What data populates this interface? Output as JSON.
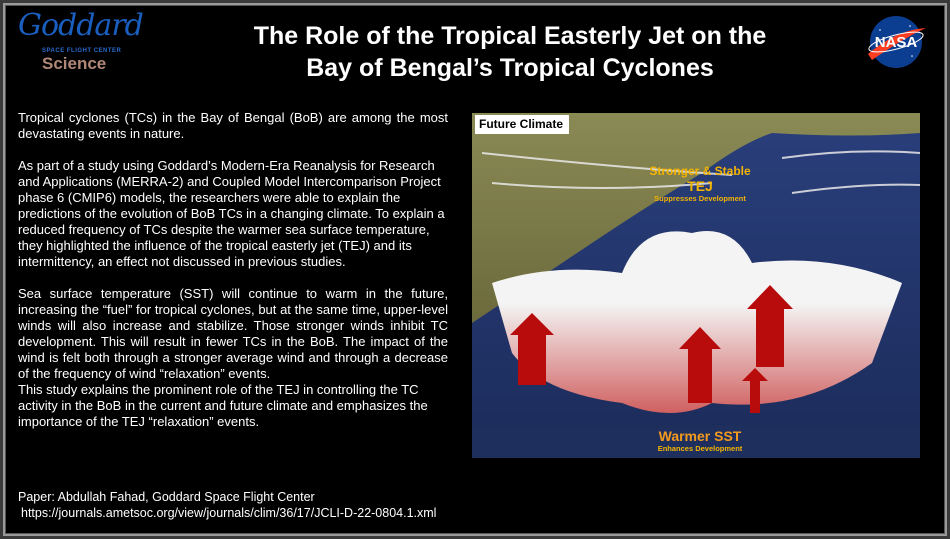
{
  "logo": {
    "name": "Goddard",
    "subtitle": "SPACE FLIGHT CENTER",
    "sub2": "Science"
  },
  "title": {
    "line1": "The Role of the Tropical Easterly Jet on the",
    "line2": "Bay of Bengal’s Tropical Cyclones"
  },
  "nasa_logo": "NASA",
  "paragraphs": [
    "Tropical cyclones (TCs) in the Bay of Bengal (BoB) are among the most devastating events in nature.",
    "As part of a study using Goddard’s Modern-Era Reanalysis for Research and Applications (MERRA-2) and Coupled Model Intercomparison Project phase 6 (CMIP6) models, the researchers were able to explain the predictions of the evolution of BoB TCs in a changing climate. To explain a reduced frequency of TCs despite the warmer sea surface temperature, they highlighted the influence of the tropical easterly jet (TEJ) and its intermittency, an effect not discussed in previous studies.",
    "Sea surface temperature (SST) will continue to warm in the future, increasing the “fuel” for tropical cyclones, but at the same time, upper-level winds will also increase and stabilize. Those stronger winds inhibit TC development. This will result in fewer TCs in the BoB. The impact of the wind is felt both through a stronger average wind and through a decrease of the frequency of wind “relaxation” events.",
    "This study explains the prominent role of the TEJ in controlling the TC activity in the BoB in the current and future climate and emphasizes the importance of the TEJ “relaxation” events."
  ],
  "illustration": {
    "label": "Future Climate",
    "tej_line1": "Stronger & Stable",
    "tej_line2": "TEJ",
    "tej_effect": "Suppresses Development",
    "sst_label": "Warmer SST",
    "sst_effect": "Enhances Development"
  },
  "footer": {
    "paper": "Paper: Abdullah Fahad, Goddard Space Flight Center",
    "url": "https://journals.ametsoc.org/view/journals/clim/36/17/JCLI-D-22-0804.1.xml"
  },
  "colors": {
    "label": "#f4b400",
    "background": "#000000",
    "arrow": "#b80c0c"
  }
}
